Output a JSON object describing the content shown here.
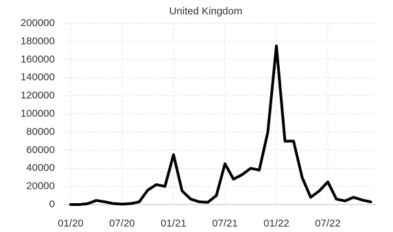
{
  "chart_data": {
    "type": "line",
    "title": "United Kingdom",
    "x": [
      "01/20",
      "02/20",
      "03/20",
      "04/20",
      "05/20",
      "06/20",
      "07/20",
      "08/20",
      "09/20",
      "10/20",
      "11/20",
      "12/20",
      "01/21",
      "02/21",
      "03/21",
      "04/21",
      "05/21",
      "06/21",
      "07/21",
      "08/21",
      "09/21",
      "10/21",
      "11/21",
      "12/21",
      "01/22",
      "02/22",
      "03/22",
      "04/22",
      "05/22",
      "06/22",
      "07/22",
      "08/22",
      "09/22",
      "10/22",
      "11/22",
      "12/22"
    ],
    "series": [
      {
        "name": "United Kingdom",
        "color": "#000000",
        "values": [
          0,
          0,
          1000,
          4500,
          3000,
          1000,
          500,
          1000,
          3000,
          16000,
          22000,
          20000,
          55000,
          15000,
          6000,
          3000,
          2500,
          10000,
          45000,
          28000,
          33000,
          40000,
          38000,
          80000,
          175000,
          70000,
          70000,
          30000,
          8000,
          15000,
          25000,
          6000,
          4000,
          8000,
          5000,
          3000
        ]
      }
    ],
    "ylim": [
      0,
      200000
    ],
    "yticks": [
      0,
      20000,
      40000,
      60000,
      80000,
      100000,
      120000,
      140000,
      160000,
      180000,
      200000
    ],
    "grid": true
  }
}
